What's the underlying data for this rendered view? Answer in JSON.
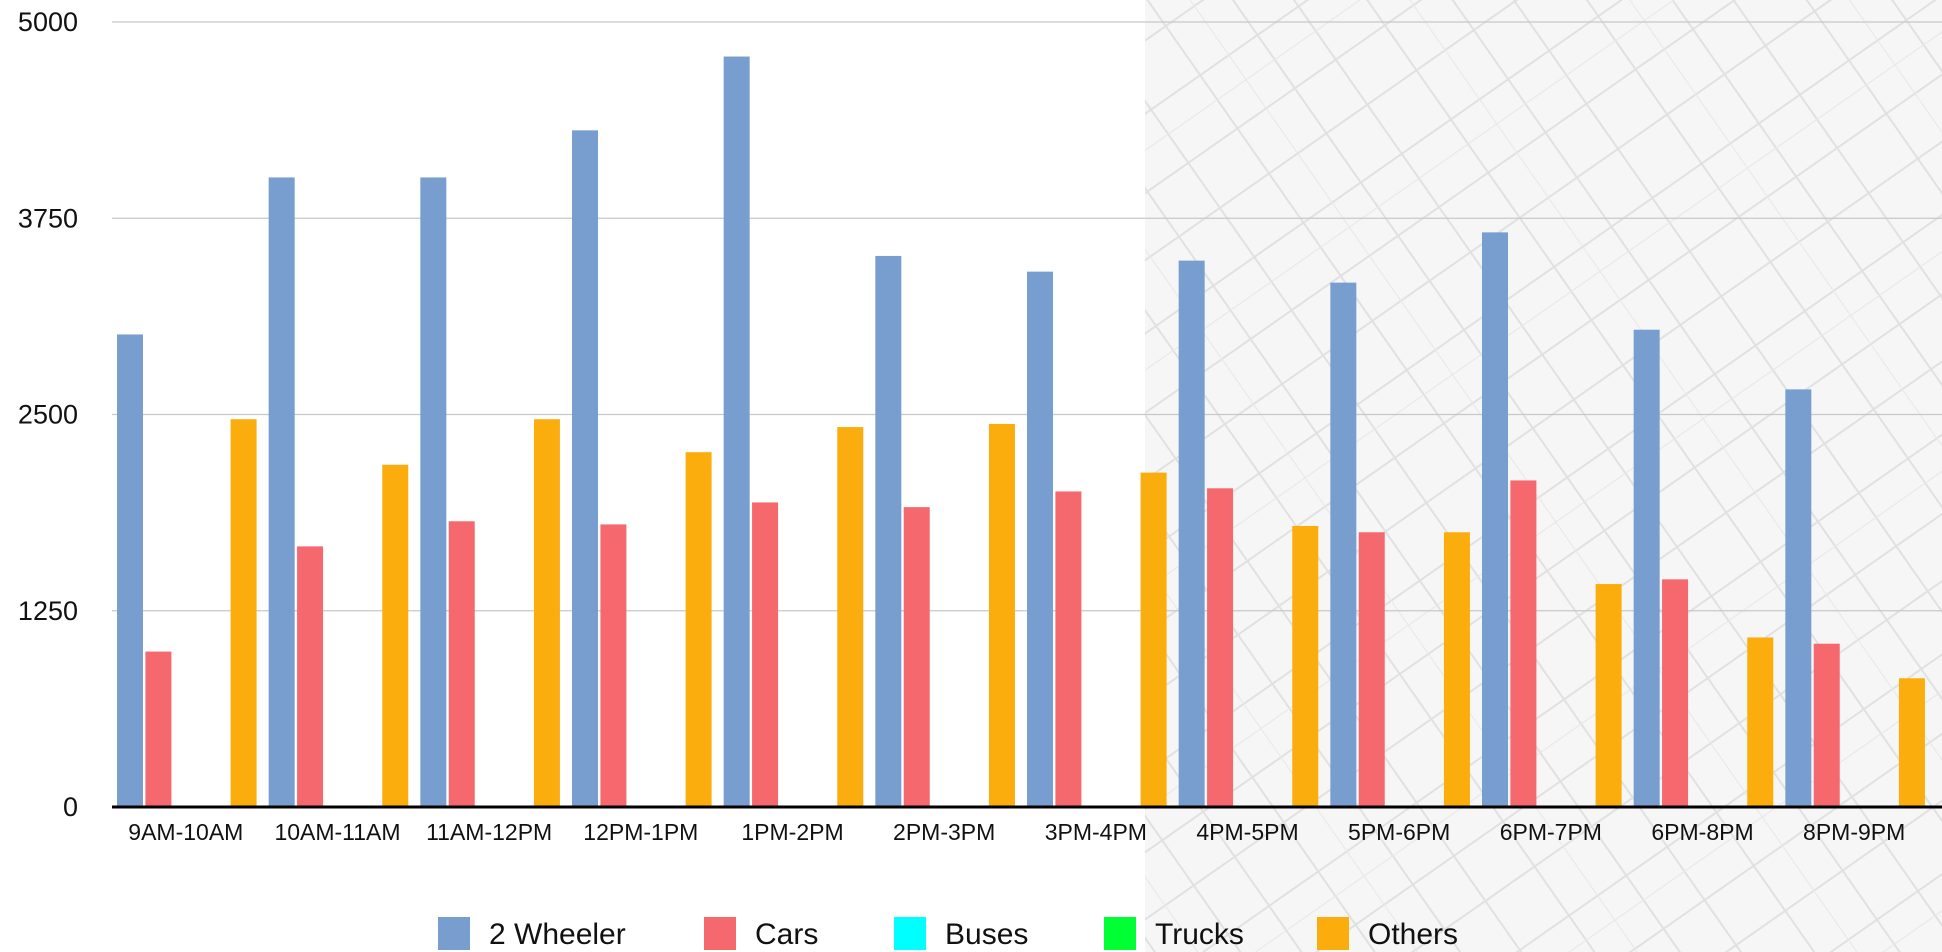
{
  "chart_data": {
    "type": "bar",
    "title": "",
    "xlabel": "",
    "ylabel": "",
    "ylim": [
      0,
      5000
    ],
    "yticks": [
      "0",
      "1250",
      "2500",
      "3750",
      "5000"
    ],
    "grid": true,
    "legend_position": "bottom",
    "categories": [
      "9AM-10AM",
      "10AM-11AM",
      "11AM-12PM",
      "12PM-1PM",
      "1PM-2PM",
      "2PM-3PM",
      "3PM-4PM",
      "4PM-5PM",
      "5PM-6PM",
      "6PM-7PM",
      "6PM-8PM",
      "8PM-9PM"
    ],
    "series": [
      {
        "name": "2 Wheeler",
        "color": "#779ECF",
        "values": [
          3010,
          4010,
          4010,
          4310,
          4780,
          3510,
          3410,
          3480,
          3340,
          3660,
          3040,
          2660
        ]
      },
      {
        "name": "Cars",
        "color": "#F5686D",
        "values": [
          990,
          1660,
          1820,
          1800,
          1940,
          1910,
          2010,
          2030,
          1750,
          2080,
          1450,
          1040
        ]
      },
      {
        "name": "Buses",
        "color": "#00FFFF",
        "values": [
          0,
          0,
          0,
          0,
          0,
          0,
          0,
          0,
          0,
          0,
          0,
          0
        ]
      },
      {
        "name": "Trucks",
        "color": "#00FF33",
        "values": [
          0,
          0,
          0,
          0,
          0,
          0,
          0,
          0,
          0,
          0,
          0,
          0
        ]
      },
      {
        "name": "Others",
        "color": "#FBAD0E",
        "values": [
          2470,
          2180,
          2470,
          2260,
          2420,
          2440,
          2130,
          1790,
          1750,
          1420,
          1080,
          820
        ]
      }
    ]
  }
}
